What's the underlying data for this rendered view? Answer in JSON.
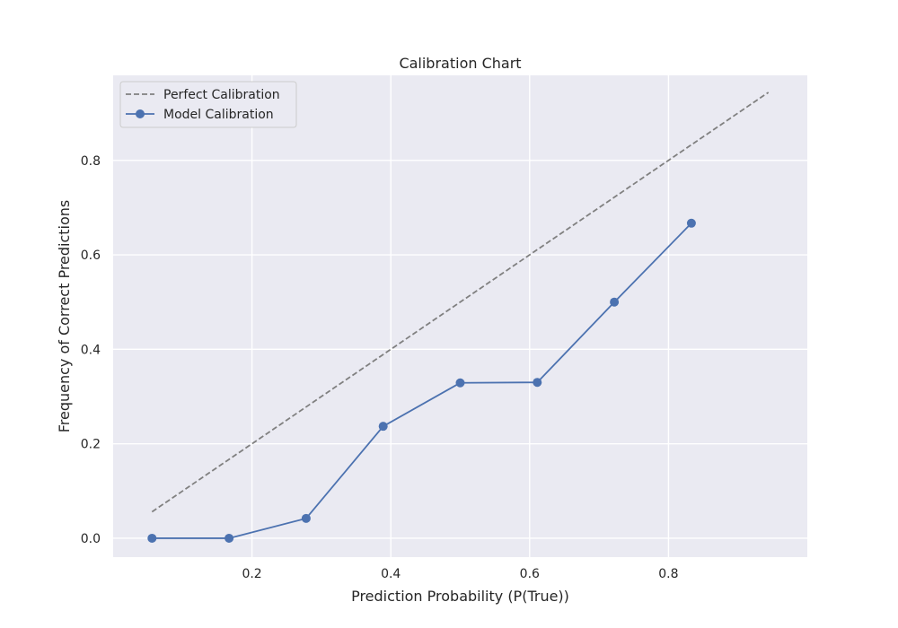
{
  "chart_data": {
    "type": "line",
    "title": "Calibration Chart",
    "xlabel": "Prediction Probability (P(True))",
    "ylabel": "Frequency of Correct Predictions",
    "xlim": [
      0.0,
      1.0
    ],
    "ylim": [
      -0.04,
      0.98
    ],
    "x_ticks": [
      "0.2",
      "0.4",
      "0.6",
      "0.8"
    ],
    "y_ticks": [
      "0.0",
      "0.2",
      "0.4",
      "0.6",
      "0.8"
    ],
    "grid": true,
    "legend_position": "top-left",
    "series": [
      {
        "name": "Perfect Calibration",
        "style": "dashed",
        "color": "#808080",
        "x": [
          0.056,
          0.944
        ],
        "y": [
          0.056,
          0.944
        ]
      },
      {
        "name": "Model Calibration",
        "style": "solid-markers",
        "color": "#4c72b0",
        "x": [
          0.056,
          0.167,
          0.278,
          0.389,
          0.5,
          0.611,
          0.722,
          0.833
        ],
        "y": [
          0.0,
          0.0,
          0.042,
          0.237,
          0.329,
          0.33,
          0.5,
          0.667
        ]
      }
    ]
  }
}
